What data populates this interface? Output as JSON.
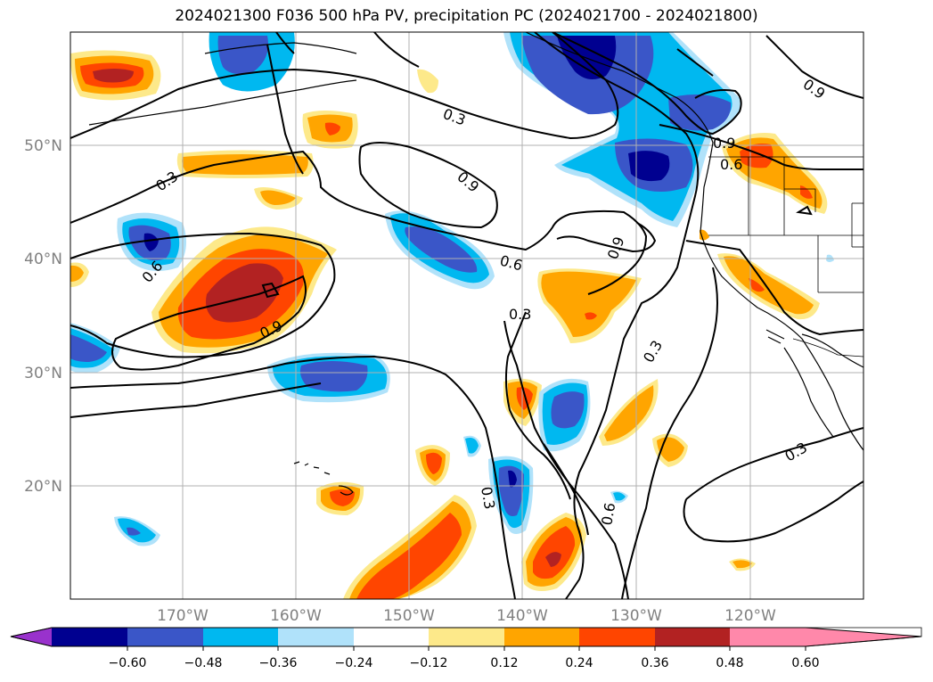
{
  "title": "2024021300 F036 500 hPa PV, precipitation PC (2024021700 - 2024021800)",
  "lat_labels": [
    "50°N",
    "40°N",
    "30°N",
    "20°N"
  ],
  "lon_labels": [
    "170°W",
    "160°W",
    "150°W",
    "140°W",
    "130°W",
    "120°W"
  ],
  "contour_labels": [
    "0.3",
    "0.6",
    "0.9"
  ],
  "colorbar": {
    "ticks": [
      "−0.60",
      "−0.48",
      "−0.36",
      "−0.24",
      "−0.12",
      "0.12",
      "0.24",
      "0.36",
      "0.48",
      "0.60"
    ],
    "colors": [
      "#9932cc",
      "#000090",
      "#3a56c8",
      "#00b8f0",
      "#b0e2fa",
      "#ffffff",
      "#fde98a",
      "#ffa500",
      "#ff4500",
      "#b22222",
      "#ff88aa"
    ]
  }
}
